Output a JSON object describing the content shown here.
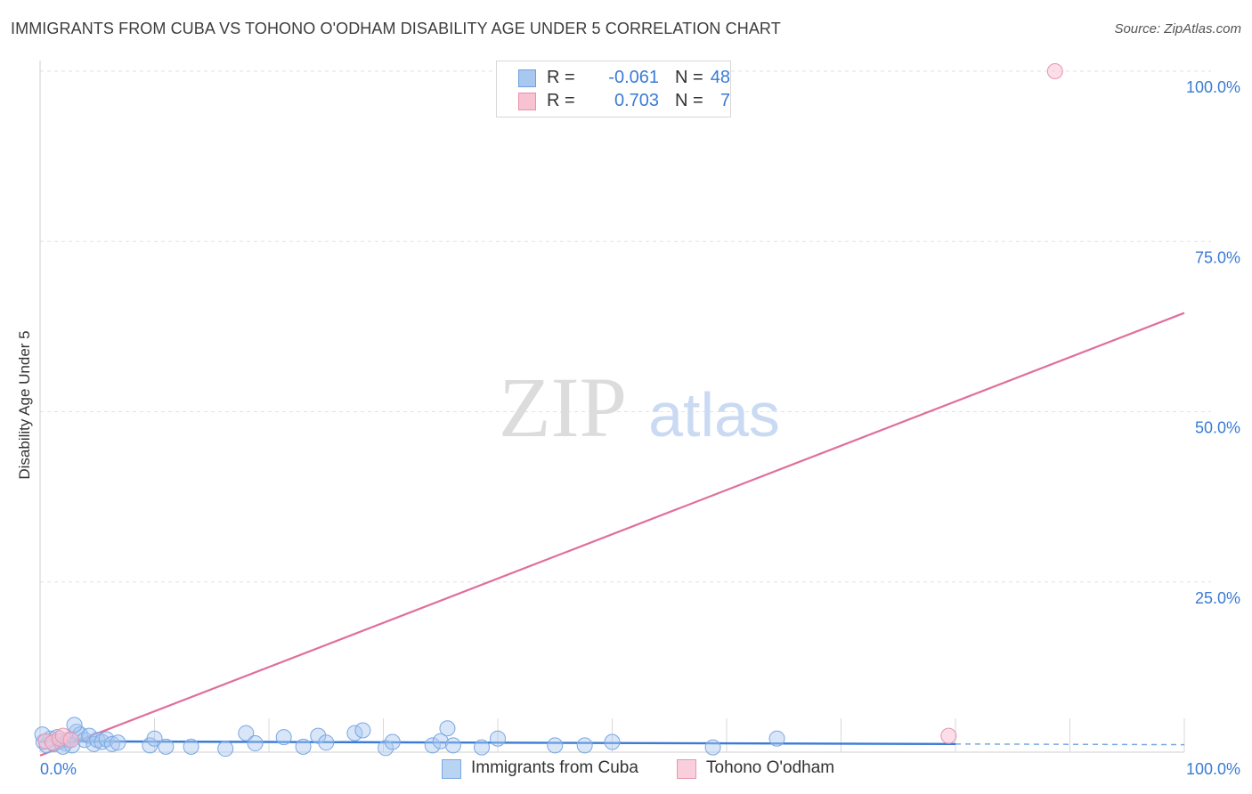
{
  "title": "IMMIGRANTS FROM CUBA VS TOHONO O'ODHAM DISABILITY AGE UNDER 5 CORRELATION CHART",
  "source": "Source: ZipAtlas.com",
  "watermark": {
    "zip": "ZIP",
    "atlas": "atlas"
  },
  "legend_top": {
    "rows": [
      {
        "r_label": "R =",
        "r_value": "-0.061",
        "n_label": "N =",
        "n_value": "48",
        "color": "#a9c8f0",
        "border": "#6f9fe0"
      },
      {
        "r_label": "R =",
        "r_value": "0.703",
        "n_label": "N =",
        "n_value": "7",
        "color": "#f7c3d3",
        "border": "#e88fac"
      }
    ]
  },
  "legend_bottom": [
    {
      "label": "Immigrants from Cuba",
      "color": "#b9d3f3",
      "border": "#7aa7e3"
    },
    {
      "label": "Tohono O'odham",
      "color": "#f9cfdc",
      "border": "#e896b1"
    }
  ],
  "chart_data": {
    "type": "scatter",
    "title": "IMMIGRANTS FROM CUBA VS TOHONO O'ODHAM DISABILITY AGE UNDER 5 CORRELATION CHART",
    "xlabel": "",
    "ylabel": "Disability Age Under 5",
    "xlim": [
      0,
      100
    ],
    "ylim": [
      0,
      100
    ],
    "x_tick_labels": [
      {
        "value": 0,
        "label": "0.0%"
      },
      {
        "value": 100,
        "label": "100.0%"
      }
    ],
    "y_tick_labels": [
      {
        "value": 25,
        "label": "25.0%"
      },
      {
        "value": 50,
        "label": "50.0%"
      },
      {
        "value": 75,
        "label": "75.0%"
      },
      {
        "value": 100,
        "label": "100.0%"
      }
    ],
    "grid": true,
    "legend_position": "top-center",
    "colors": {
      "series1": "#3a7bd5",
      "series2": "#e06f9c",
      "tick_text": "#3a7bd5"
    },
    "series": [
      {
        "name": "Immigrants from Cuba",
        "r": -0.061,
        "n": 48,
        "points": [
          {
            "x": 0.3,
            "y": 1.5
          },
          {
            "x": 0.6,
            "y": 1.0
          },
          {
            "x": 0.9,
            "y": 2.0
          },
          {
            "x": 1.2,
            "y": 1.2
          },
          {
            "x": 1.5,
            "y": 2.2
          },
          {
            "x": 1.8,
            "y": 1.6
          },
          {
            "x": 2.2,
            "y": 1.3
          },
          {
            "x": 2.5,
            "y": 1.8
          },
          {
            "x": 2.8,
            "y": 1.0
          },
          {
            "x": 3.2,
            "y": 3.0
          },
          {
            "x": 3.5,
            "y": 2.6
          },
          {
            "x": 3.9,
            "y": 1.8
          },
          {
            "x": 4.3,
            "y": 2.4
          },
          {
            "x": 4.7,
            "y": 1.2
          },
          {
            "x": 5.0,
            "y": 1.8
          },
          {
            "x": 5.4,
            "y": 1.5
          },
          {
            "x": 5.8,
            "y": 1.9
          },
          {
            "x": 6.3,
            "y": 1.2
          },
          {
            "x": 6.8,
            "y": 1.4
          },
          {
            "x": 9.6,
            "y": 1.0
          },
          {
            "x": 10.0,
            "y": 2.0
          },
          {
            "x": 11.0,
            "y": 0.8
          },
          {
            "x": 13.2,
            "y": 0.8
          },
          {
            "x": 16.2,
            "y": 0.5
          },
          {
            "x": 18.0,
            "y": 2.8
          },
          {
            "x": 18.8,
            "y": 1.3
          },
          {
            "x": 21.3,
            "y": 2.2
          },
          {
            "x": 23.0,
            "y": 0.8
          },
          {
            "x": 24.3,
            "y": 2.4
          },
          {
            "x": 25.0,
            "y": 1.4
          },
          {
            "x": 27.5,
            "y": 2.8
          },
          {
            "x": 28.2,
            "y": 3.2
          },
          {
            "x": 30.2,
            "y": 0.6
          },
          {
            "x": 30.8,
            "y": 1.5
          },
          {
            "x": 34.3,
            "y": 1.0
          },
          {
            "x": 35.0,
            "y": 1.6
          },
          {
            "x": 35.6,
            "y": 3.5
          },
          {
            "x": 36.1,
            "y": 1.0
          },
          {
            "x": 38.6,
            "y": 0.7
          },
          {
            "x": 40.0,
            "y": 2.0
          },
          {
            "x": 45.0,
            "y": 1.0
          },
          {
            "x": 47.6,
            "y": 1.0
          },
          {
            "x": 50.0,
            "y": 1.5
          },
          {
            "x": 58.8,
            "y": 0.7
          },
          {
            "x": 64.4,
            "y": 2.0
          },
          {
            "x": 0.2,
            "y": 2.6
          },
          {
            "x": 2.0,
            "y": 0.8
          },
          {
            "x": 3.0,
            "y": 4.0
          }
        ],
        "trend": {
          "x": [
            0,
            80
          ],
          "y": [
            1.6,
            1.2
          ],
          "dashed_extension_to": 100
        }
      },
      {
        "name": "Tohono O'odham",
        "r": 0.703,
        "n": 7,
        "points": [
          {
            "x": 0.5,
            "y": 1.6
          },
          {
            "x": 1.1,
            "y": 1.4
          },
          {
            "x": 1.7,
            "y": 2.0
          },
          {
            "x": 2.0,
            "y": 2.4
          },
          {
            "x": 2.7,
            "y": 1.8
          },
          {
            "x": 79.4,
            "y": 2.4
          },
          {
            "x": 88.7,
            "y": 100.0
          }
        ],
        "trend": {
          "x": [
            0,
            100
          ],
          "y": [
            -0.5,
            64.5
          ]
        }
      }
    ]
  }
}
